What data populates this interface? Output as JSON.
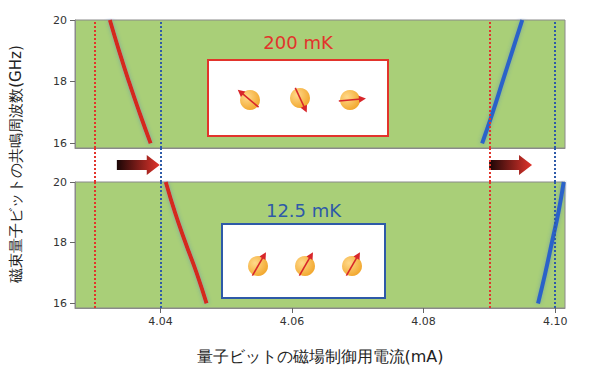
{
  "axis_titles": {
    "x": "量子ビットの磁場制御用電流(mA)",
    "y": "磁束量子ビットの共鳴周波数(GHz)"
  },
  "chart_data": [
    {
      "type": "line",
      "annotation": "200 mK",
      "color": "#e2342c",
      "grid": false,
      "tick_labels": "y",
      "xlim": [
        4.027,
        4.1015
      ],
      "ylim": [
        15.85,
        20
      ],
      "yticks": [
        16,
        18,
        20
      ],
      "vlines": [
        4.0323,
        4.0889
      ],
      "series": [
        {
          "color": "#d42a1f",
          "x": [
            4.0385,
            4.0368,
            4.0352,
            4.0337,
            4.0323
          ],
          "values": [
            16,
            17,
            18,
            19,
            20
          ]
        },
        {
          "color": "#2b62c9",
          "x": [
            4.0889,
            4.0905,
            4.092,
            4.0935,
            4.095
          ],
          "values": [
            16,
            17,
            18,
            19,
            20
          ]
        }
      ]
    },
    {
      "type": "line",
      "annotation": "12.5 mK",
      "color": "#2e5aa8",
      "grid": false,
      "xlim": [
        4.027,
        4.1015
      ],
      "xticks": [
        4.04,
        4.06,
        4.08,
        {
          "value": 4.1,
          "label": "4.10"
        }
      ],
      "ylim": [
        15.85,
        20
      ],
      "yticks": [
        16,
        18,
        20
      ],
      "vlines": [
        4.0408,
        4.0974
      ],
      "series": [
        {
          "color": "#d42a1f",
          "x": [
            4.047,
            4.0455,
            4.0438,
            4.0422,
            4.0408
          ],
          "values": [
            16,
            17,
            18,
            19,
            20
          ]
        },
        {
          "color": "#2b62c9",
          "x": [
            4.0974,
            4.0985,
            4.0995,
            4.1005,
            4.1013
          ],
          "values": [
            16,
            17,
            18,
            19,
            20
          ]
        }
      ]
    }
  ]
}
